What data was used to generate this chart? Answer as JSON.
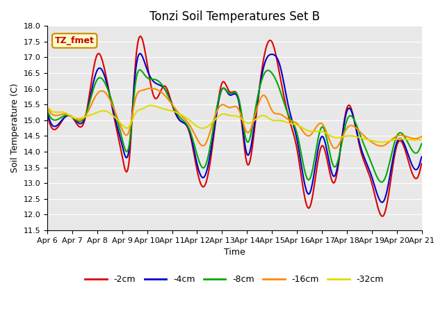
{
  "title": "Tonzi Soil Temperatures Set B",
  "xlabel": "Time",
  "ylabel": "Soil Temperature (C)",
  "ylim": [
    11.5,
    18.0
  ],
  "yticks": [
    11.5,
    12.0,
    12.5,
    13.0,
    13.5,
    14.0,
    14.5,
    15.0,
    15.5,
    16.0,
    16.5,
    17.0,
    17.5,
    18.0
  ],
  "xtick_labels": [
    "Apr 6",
    "Apr 7",
    "Apr 8",
    "Apr 9",
    "Apr 10",
    "Apr 11",
    "Apr 12",
    "Apr 13",
    "Apr 14",
    "Apr 15",
    "Apr 16",
    "Apr 17",
    "Apr 18",
    "Apr 19",
    "Apr 20",
    "Apr 21"
  ],
  "colors": {
    "-2cm": "#dd0000",
    "-4cm": "#0000cc",
    "-8cm": "#00aa00",
    "-16cm": "#ff8800",
    "-32cm": "#dddd00"
  },
  "legend_label": "TZ_fmet",
  "background_color": "#e8e8e8",
  "plot_bg": "#e8e8e8",
  "line_width": 1.5
}
